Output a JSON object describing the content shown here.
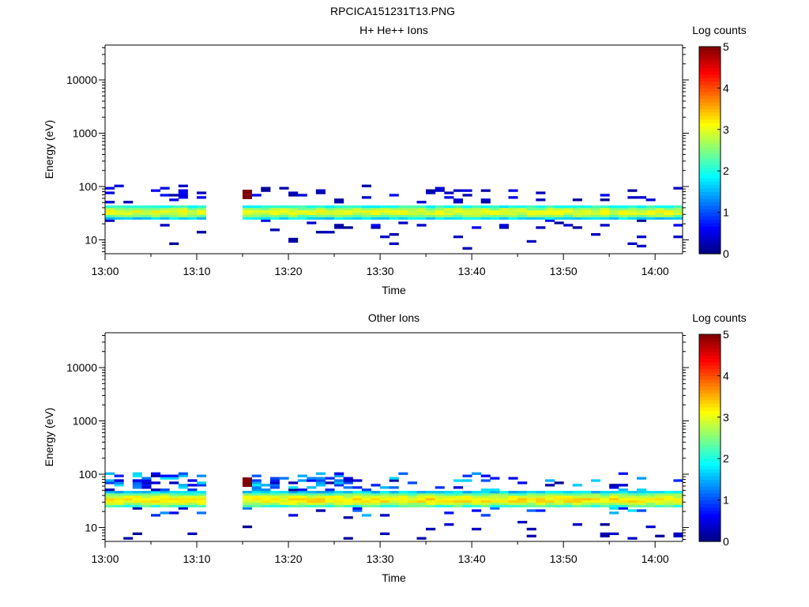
{
  "figure_title": "RPCICA151231T13.PNG",
  "chart_data": [
    {
      "type": "heatmap",
      "title": "H+ He++ Ions",
      "xlabel": "Time",
      "ylabel": "Energy (eV)",
      "x_ticks": [
        "13:00",
        "13:10",
        "13:20",
        "13:30",
        "13:40",
        "13:50",
        "14:00"
      ],
      "x_range": [
        "13:00",
        "14:03"
      ],
      "y_scale": "log",
      "y_ticks": [
        "10",
        "100",
        "1000",
        "10000"
      ],
      "y_range": [
        5.5,
        45000
      ],
      "gap": [
        "13:11",
        "13:15"
      ],
      "core_band_eV": [
        24,
        46
      ],
      "core_level": 3,
      "colorbar": {
        "label": "Log counts",
        "min": 0,
        "max": 5,
        "ticks": [
          "0",
          "1",
          "2",
          "3",
          "4",
          "5"
        ]
      },
      "max_point": {
        "time": "13:15",
        "energy": 78,
        "level": 5
      }
    },
    {
      "type": "heatmap",
      "title": "Other Ions",
      "xlabel": "Time",
      "ylabel": "Energy (eV)",
      "x_ticks": [
        "13:00",
        "13:10",
        "13:20",
        "13:30",
        "13:40",
        "13:50",
        "14:00"
      ],
      "x_range": [
        "13:00",
        "14:03"
      ],
      "y_scale": "log",
      "y_ticks": [
        "10",
        "100",
        "1000",
        "10000"
      ],
      "y_range": [
        5.5,
        45000
      ],
      "gap": [
        "13:11",
        "13:15"
      ],
      "core_band_eV": [
        23,
        48
      ],
      "core_level": 3.2,
      "colorbar": {
        "label": "Log counts",
        "min": 0,
        "max": 5,
        "ticks": [
          "0",
          "1",
          "2",
          "3",
          "4",
          "5"
        ]
      },
      "max_point": {
        "time": "13:15",
        "energy": 78,
        "level": 5
      }
    }
  ]
}
